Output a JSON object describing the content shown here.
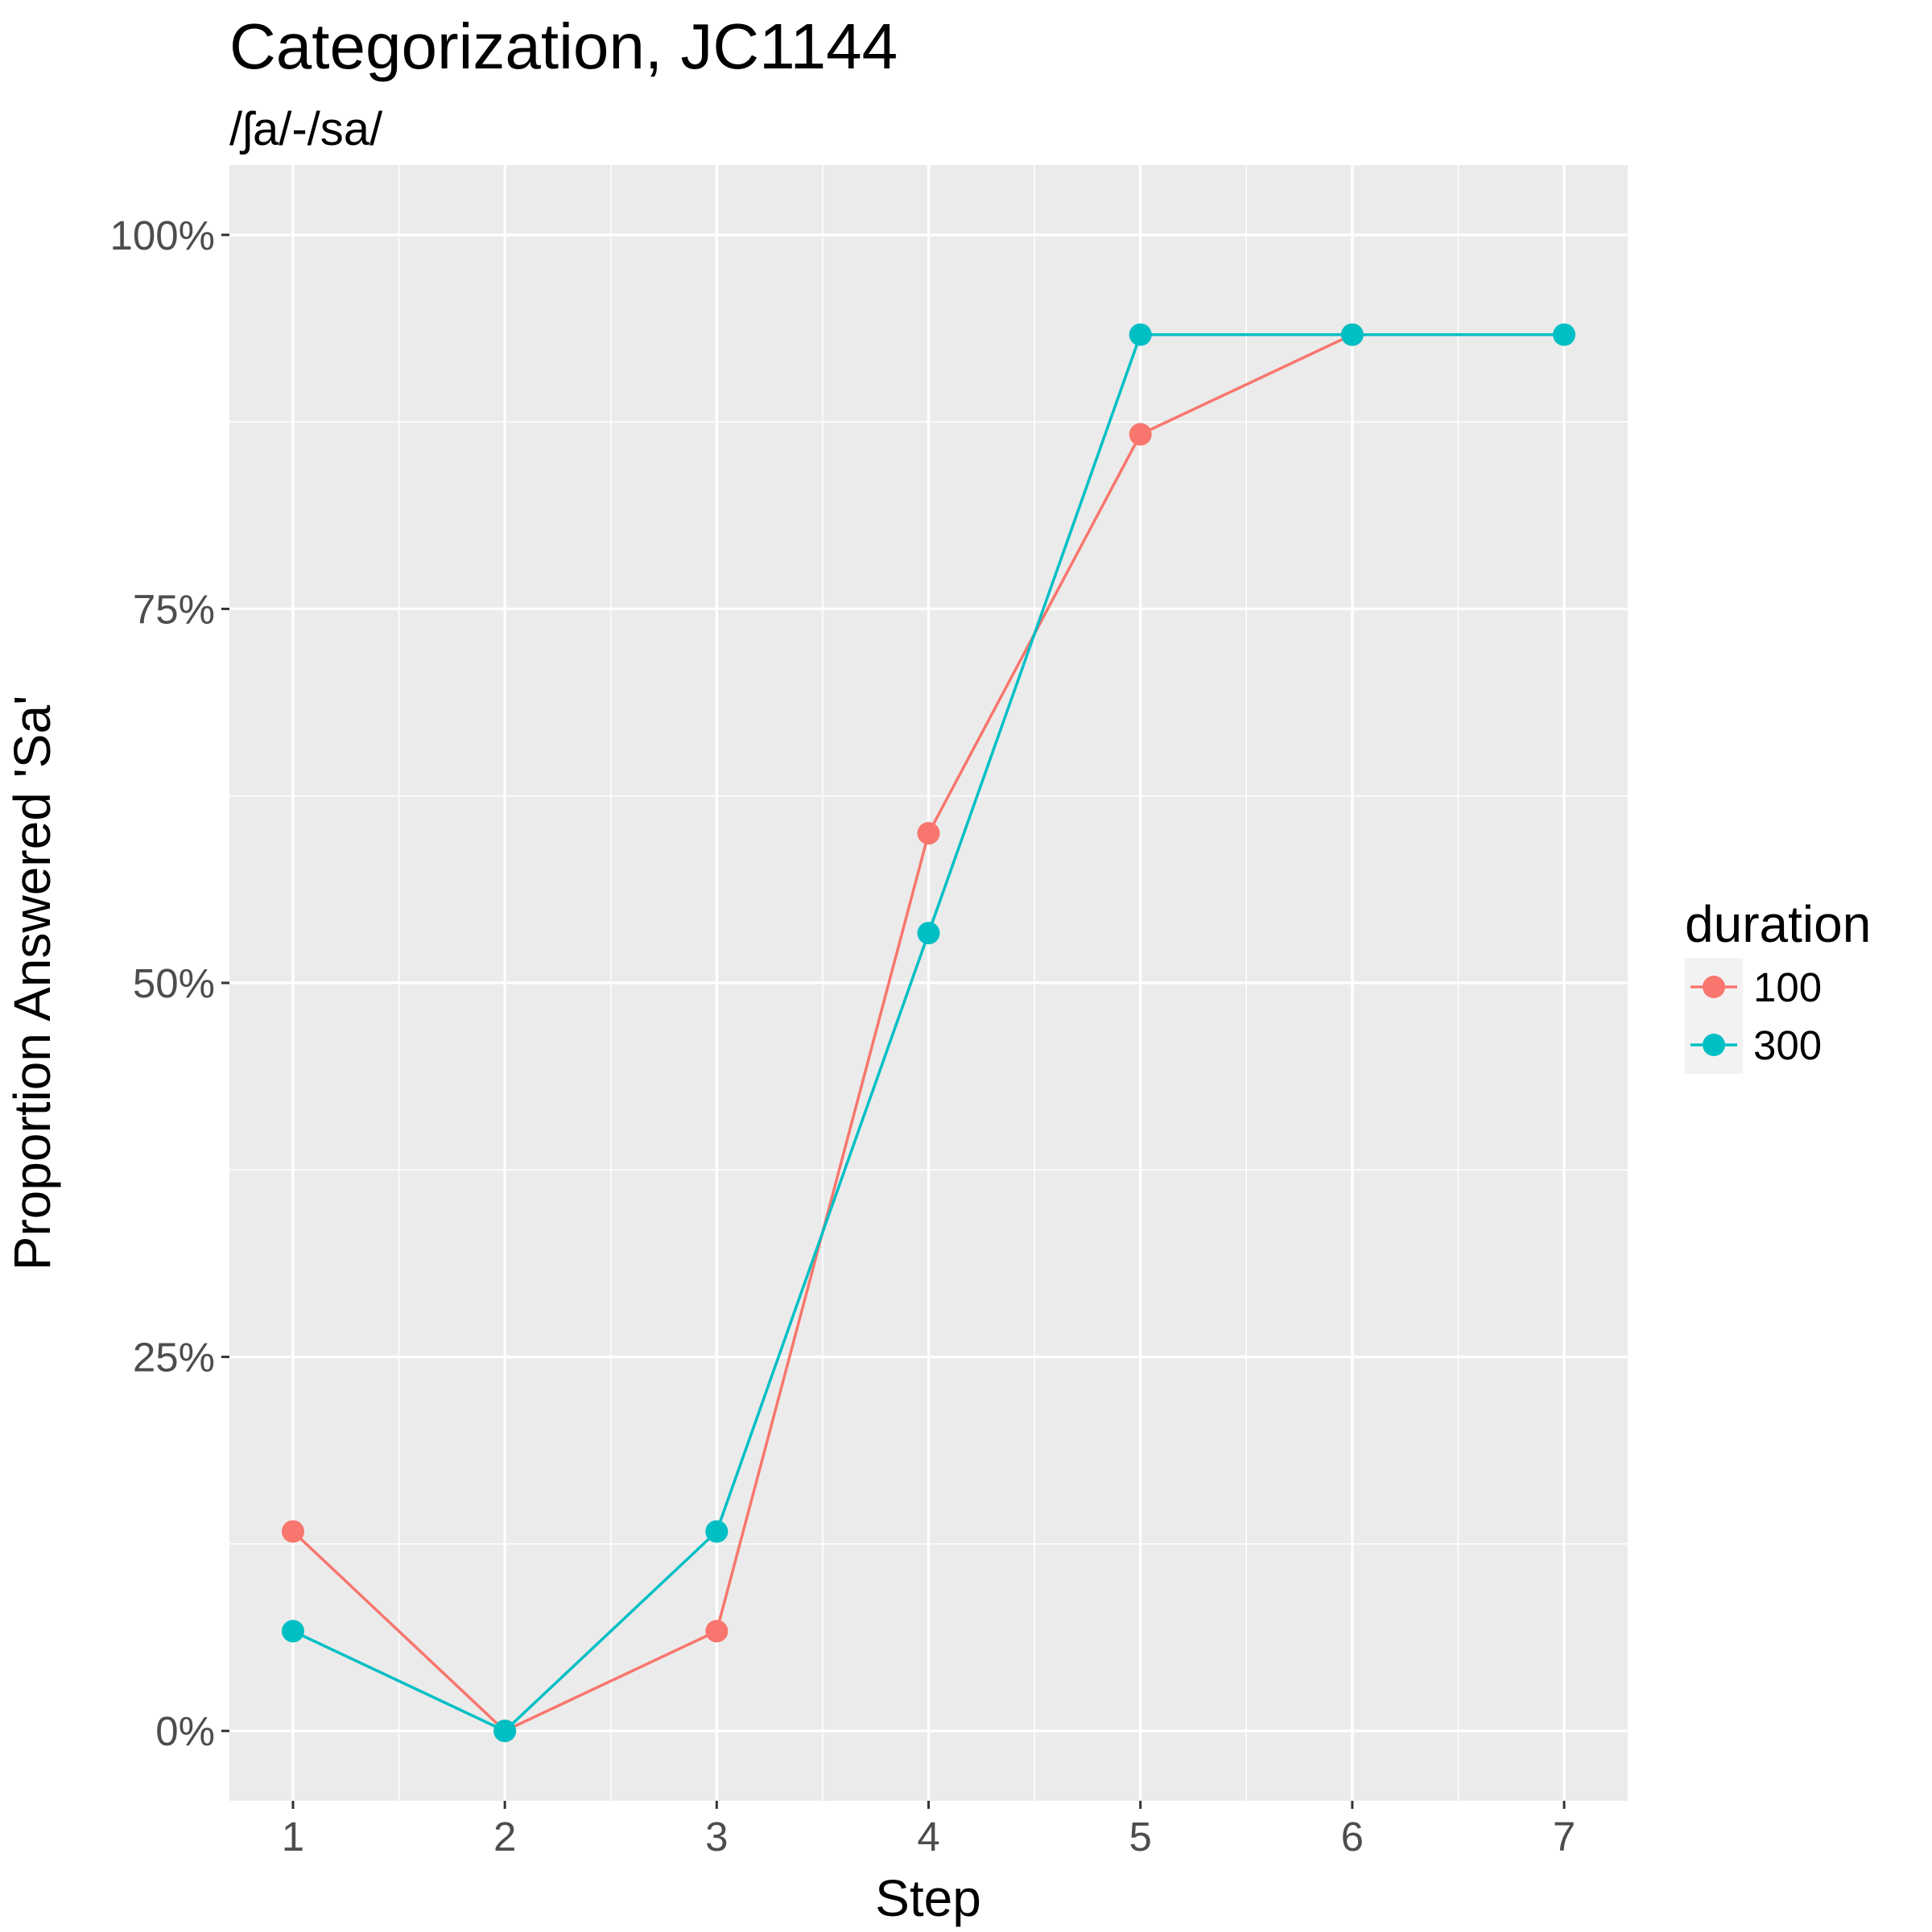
{
  "chart_data": {
    "type": "line",
    "title": "Categorization, JC1144",
    "subtitle": "/ʃa/-/sa/",
    "xlabel": "Step",
    "ylabel": "Proportion Answered 'Sa'",
    "x": [
      1,
      2,
      3,
      4,
      5,
      6,
      7
    ],
    "x_ticks": [
      "1",
      "2",
      "3",
      "4",
      "5",
      "6",
      "7"
    ],
    "xlim": [
      0.7,
      7.3
    ],
    "ylim": [
      -0.0467,
      1.0467
    ],
    "y_ticks": [
      {
        "value": 0,
        "label": "0%"
      },
      {
        "value": 0.25,
        "label": "25%"
      },
      {
        "value": 0.5,
        "label": "50%"
      },
      {
        "value": 0.75,
        "label": "75%"
      },
      {
        "value": 1.0,
        "label": "100%"
      }
    ],
    "grid": true,
    "legend": {
      "title": "duration",
      "placement": "right"
    },
    "series": [
      {
        "name": "100",
        "color": "#F8766D",
        "x": [
          1,
          2,
          3,
          4,
          5,
          6
        ],
        "values": [
          0.1333,
          0.0,
          0.0667,
          0.6,
          0.8667,
          0.9333
        ]
      },
      {
        "name": "300",
        "color": "#00BFC4",
        "x": [
          1,
          2,
          3,
          4,
          5,
          6,
          7
        ],
        "values": [
          0.0667,
          0.0,
          0.1333,
          0.5333,
          0.9333,
          0.9333,
          0.9333
        ]
      }
    ]
  }
}
